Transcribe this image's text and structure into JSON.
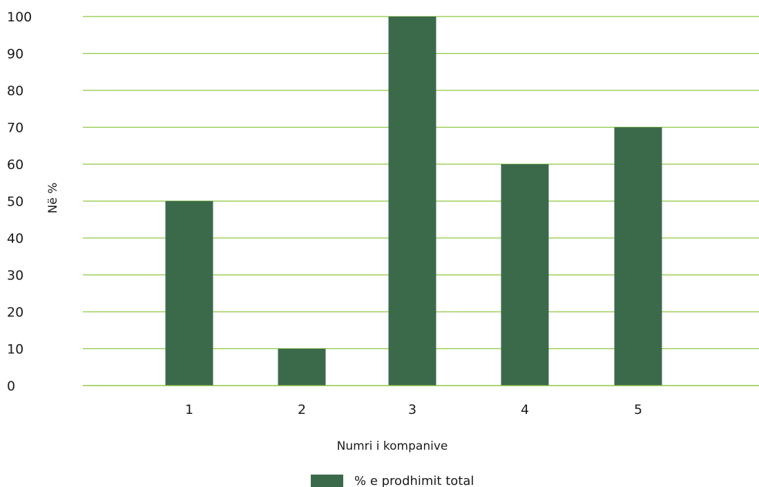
{
  "chart_data": {
    "type": "bar",
    "categories": [
      "1",
      "2",
      "3",
      "4",
      "5"
    ],
    "series": [
      {
        "name": "% e prodhimit total",
        "values": [
          50,
          10,
          100,
          60,
          70
        ]
      }
    ],
    "xlabel": "Numri i kompanive",
    "ylabel": "Në %",
    "ylim": [
      0,
      100
    ],
    "yticks": [
      0,
      10,
      20,
      30,
      40,
      50,
      60,
      70,
      80,
      90,
      100
    ],
    "grid": true,
    "legend_position": "bottom",
    "colors": {
      "bar": "#3b6a4b",
      "grid": "#8cc63f"
    }
  }
}
